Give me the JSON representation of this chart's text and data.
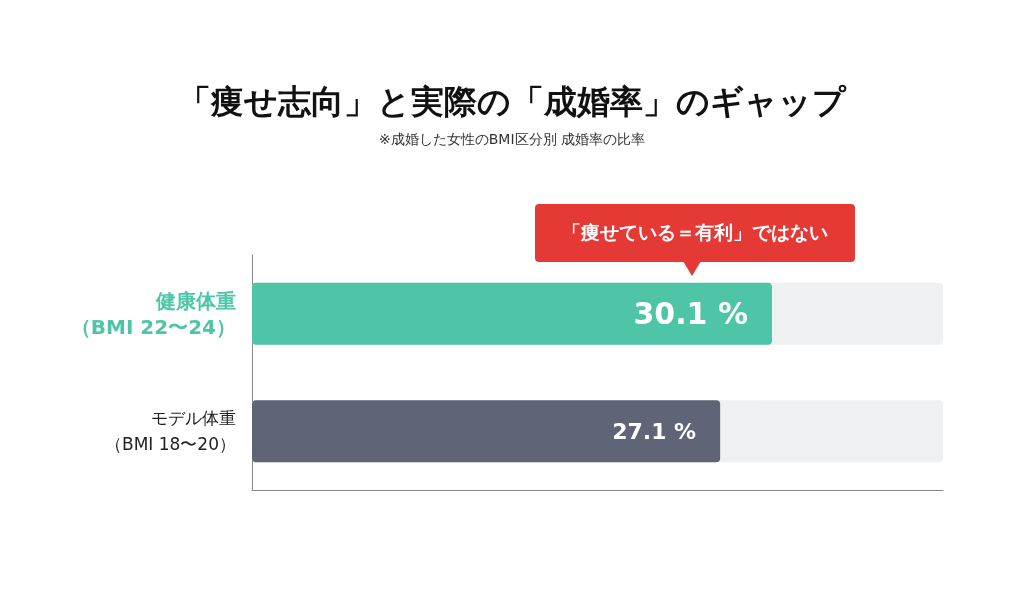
{
  "chart_data": {
    "type": "bar",
    "orientation": "horizontal",
    "title": "「痩せ志向」と実際の「成婚率」のギャップ",
    "subtitle": "※成婚した女性のBMI区分別 成婚率の比率",
    "categories": [
      "健康体重（BMI 22〜24）",
      "モデル体重（BMI 18〜20）"
    ],
    "values": [
      30.1,
      27.1
    ],
    "colors": [
      "#4fc5a8",
      "#5f6577"
    ],
    "value_labels": [
      "30.1 %",
      "27.1 %"
    ],
    "xlim": [
      0,
      40
    ],
    "tick_labels": "y",
    "grid": false,
    "annotations": [
      "「痩せている＝有利」ではない"
    ]
  }
}
